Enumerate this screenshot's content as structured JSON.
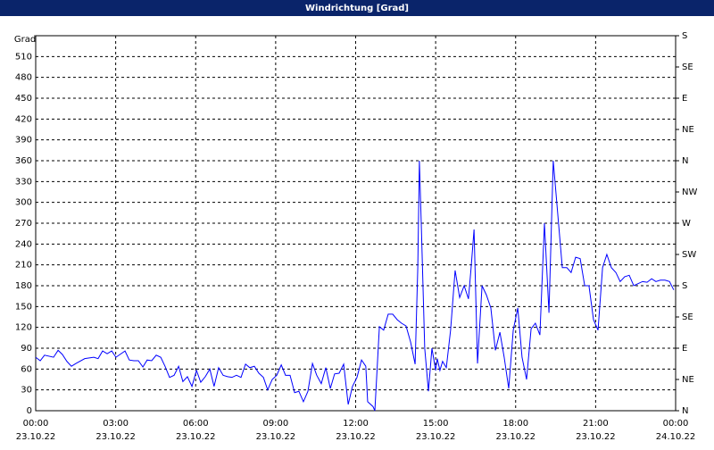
{
  "chart_data": {
    "type": "line",
    "title": "Windrichtung [Grad]",
    "ylabel": "Grad",
    "xlim": [
      0,
      24
    ],
    "xticks": [
      {
        "value": 0,
        "label": "00:00",
        "date": "23.10.22"
      },
      {
        "value": 3,
        "label": "03:00",
        "date": "23.10.22"
      },
      {
        "value": 6,
        "label": "06:00",
        "date": "23.10.22"
      },
      {
        "value": 9,
        "label": "09:00",
        "date": "23.10.22"
      },
      {
        "value": 12,
        "label": "12:00",
        "date": "23.10.22"
      },
      {
        "value": 15,
        "label": "15:00",
        "date": "23.10.22"
      },
      {
        "value": 18,
        "label": "18:00",
        "date": "23.10.22"
      },
      {
        "value": 21,
        "label": "21:00",
        "date": "23.10.22"
      },
      {
        "value": 24,
        "label": "00:00",
        "date": "24.10.22"
      }
    ],
    "ylim": [
      0,
      540
    ],
    "yticks": [
      0,
      30,
      60,
      90,
      120,
      150,
      180,
      210,
      240,
      270,
      300,
      330,
      360,
      390,
      420,
      450,
      480,
      510
    ],
    "y2lim": [
      0,
      540
    ],
    "y2ticks": [
      {
        "value": 0,
        "label": "N"
      },
      {
        "value": 45,
        "label": "NE"
      },
      {
        "value": 90,
        "label": "E"
      },
      {
        "value": 135,
        "label": "SE"
      },
      {
        "value": 180,
        "label": "S"
      },
      {
        "value": 225,
        "label": "SW"
      },
      {
        "value": 270,
        "label": "W"
      },
      {
        "value": 315,
        "label": "NW"
      },
      {
        "value": 360,
        "label": "N"
      },
      {
        "value": 405,
        "label": "NE"
      },
      {
        "value": 450,
        "label": "E"
      },
      {
        "value": 495,
        "label": "SE"
      },
      {
        "value": 540,
        "label": "S"
      }
    ],
    "grid": true,
    "x": [
      0,
      0.17,
      0.33,
      0.67,
      0.84,
      1.0,
      1.17,
      1.34,
      1.51,
      1.84,
      2.18,
      2.34,
      2.51,
      2.68,
      2.85,
      3.01,
      3.35,
      3.51,
      3.68,
      3.85,
      4.02,
      4.18,
      4.35,
      4.52,
      4.69,
      4.85,
      5.02,
      5.19,
      5.36,
      5.52,
      5.69,
      5.86,
      6.03,
      6.19,
      6.36,
      6.53,
      6.69,
      6.86,
      7.03,
      7.2,
      7.36,
      7.53,
      7.7,
      7.87,
      8.03,
      8.2,
      8.37,
      8.54,
      8.7,
      8.87,
      9.04,
      9.21,
      9.37,
      9.54,
      9.71,
      9.87,
      10.04,
      10.21,
      10.38,
      10.54,
      10.71,
      10.88,
      11.05,
      11.21,
      11.38,
      11.55,
      11.72,
      11.88,
      12.05,
      12.22,
      12.38,
      12.45,
      12.65,
      12.72,
      12.89,
      13.05,
      13.22,
      13.39,
      13.56,
      13.72,
      13.89,
      14.06,
      14.23,
      14.33,
      14.39,
      14.46,
      14.59,
      14.73,
      14.86,
      15.0,
      15.06,
      15.16,
      15.26,
      15.4,
      15.56,
      15.73,
      15.9,
      16.07,
      16.23,
      16.33,
      16.44,
      16.57,
      16.74,
      16.9,
      17.07,
      17.24,
      17.41,
      17.57,
      17.74,
      17.91,
      18.08,
      18.24,
      18.41,
      18.58,
      18.74,
      18.91,
      19.08,
      19.25,
      19.41,
      19.58,
      19.75,
      19.92,
      20.08,
      20.25,
      20.42,
      20.59,
      20.75,
      20.92,
      21.09,
      21.26,
      21.42,
      21.59,
      21.76,
      21.92,
      22.09,
      22.26,
      22.43,
      22.59,
      22.76,
      22.93,
      23.1,
      23.26,
      23.43,
      23.6,
      23.77,
      23.93
    ],
    "series": [
      {
        "name": "Windrichtung",
        "color": "#0000ff",
        "values": [
          77,
          72,
          80,
          77,
          87,
          81,
          71,
          64,
          68,
          75,
          77,
          75,
          86,
          82,
          86,
          77,
          86,
          73,
          72,
          72,
          63,
          73,
          72,
          80,
          77,
          64,
          48,
          51,
          64,
          42,
          49,
          35,
          58,
          41,
          49,
          60,
          35,
          62,
          51,
          49,
          48,
          51,
          48,
          67,
          62,
          64,
          54,
          48,
          30,
          45,
          51,
          66,
          51,
          51,
          26,
          28,
          13,
          28,
          68,
          51,
          39,
          62,
          32,
          53,
          54,
          67,
          9,
          35,
          48,
          73,
          64,
          13,
          6,
          0,
          121,
          116,
          139,
          139,
          131,
          126,
          122,
          99,
          67,
          206,
          360,
          270,
          90,
          28,
          90,
          58,
          75,
          58,
          71,
          62,
          116,
          202,
          163,
          180,
          161,
          206,
          261,
          68,
          180,
          167,
          148,
          87,
          113,
          77,
          32,
          116,
          148,
          77,
          45,
          118,
          126,
          109,
          270,
          141,
          360,
          283,
          206,
          206,
          199,
          221,
          219,
          180,
          180,
          131,
          116,
          206,
          225,
          206,
          199,
          186,
          193,
          195,
          180,
          183,
          186,
          185,
          190,
          186,
          188,
          188,
          186,
          174
        ]
      }
    ]
  }
}
